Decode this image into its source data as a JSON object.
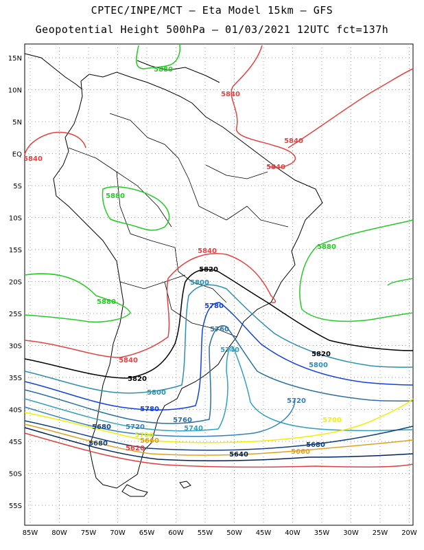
{
  "title_line1": "CPTEC/INPE/MCT –  Eta Model 15km – GFS",
  "title_line2": "Geopotential Height 500hPa – 01/03/2021 12UTC fct=137h",
  "lat_ticks": [
    "15N",
    "10N",
    "5N",
    "EQ",
    "5S",
    "10S",
    "15S",
    "20S",
    "25S",
    "30S",
    "35S",
    "40S",
    "45S",
    "50S",
    "55S"
  ],
  "lon_ticks": [
    "85W",
    "80W",
    "75W",
    "70W",
    "65W",
    "60W",
    "55W",
    "50W",
    "45W",
    "40W",
    "35W",
    "30W",
    "25W",
    "20W"
  ],
  "contours": [
    {
      "value": "5880",
      "color": "#22cc22"
    },
    {
      "value": "5840",
      "color": "#e84040"
    },
    {
      "value": "5820",
      "color": "#000000"
    },
    {
      "value": "5800",
      "color": "#2a8fb0"
    },
    {
      "value": "5780",
      "color": "#1040e0"
    },
    {
      "value": "5760",
      "color": "#2a70a0"
    },
    {
      "value": "5740",
      "color": "#30a0c0"
    },
    {
      "value": "5720",
      "color": "#3080c0"
    },
    {
      "value": "5700",
      "color": "#f0f000"
    },
    {
      "value": "5680",
      "color": "#104080"
    },
    {
      "value": "5660",
      "color": "#e0a020"
    },
    {
      "value": "5640",
      "color": "#002060"
    },
    {
      "value": "5620",
      "color": "#e04040"
    }
  ],
  "labels": [
    {
      "text": "5880",
      "color": "#22cc22"
    },
    {
      "text": "5840",
      "color": "#e84040"
    },
    {
      "text": "5840",
      "color": "#e84040"
    },
    {
      "text": "5840",
      "color": "#e84040"
    },
    {
      "text": "5840",
      "color": "#e84040"
    },
    {
      "text": "5880",
      "color": "#22cc22"
    },
    {
      "text": "5880",
      "color": "#22cc22"
    },
    {
      "text": "5880",
      "color": "#22cc22"
    },
    {
      "text": "5840",
      "color": "#e84040"
    },
    {
      "text": "5820",
      "color": "#000000"
    },
    {
      "text": "5800",
      "color": "#2a8fb0"
    },
    {
      "text": "5780",
      "color": "#1040e0"
    },
    {
      "text": "5760",
      "color": "#2a70a0"
    },
    {
      "text": "5740",
      "color": "#30a0c0"
    },
    {
      "text": "5840",
      "color": "#e84040"
    },
    {
      "text": "5820",
      "color": "#000000"
    },
    {
      "text": "5820",
      "color": "#000000"
    },
    {
      "text": "5800",
      "color": "#2a8fb0"
    },
    {
      "text": "5800",
      "color": "#2a8fb0"
    },
    {
      "text": "5780",
      "color": "#1040e0"
    },
    {
      "text": "5760",
      "color": "#2a70a0"
    },
    {
      "text": "5740",
      "color": "#30a0c0"
    },
    {
      "text": "5720",
      "color": "#3080c0"
    },
    {
      "text": "5720",
      "color": "#3080c0"
    },
    {
      "text": "5700",
      "color": "#f0f000"
    },
    {
      "text": "5680",
      "color": "#104080"
    },
    {
      "text": "5680",
      "color": "#104080"
    },
    {
      "text": "5660",
      "color": "#e0a020"
    },
    {
      "text": "5660",
      "color": "#e0a020"
    },
    {
      "text": "5640",
      "color": "#002060"
    },
    {
      "text": "5680",
      "color": "#104080"
    },
    {
      "text": "5620",
      "color": "#e04040"
    },
    {
      "text": "5700",
      "color": "#f0f000"
    }
  ]
}
